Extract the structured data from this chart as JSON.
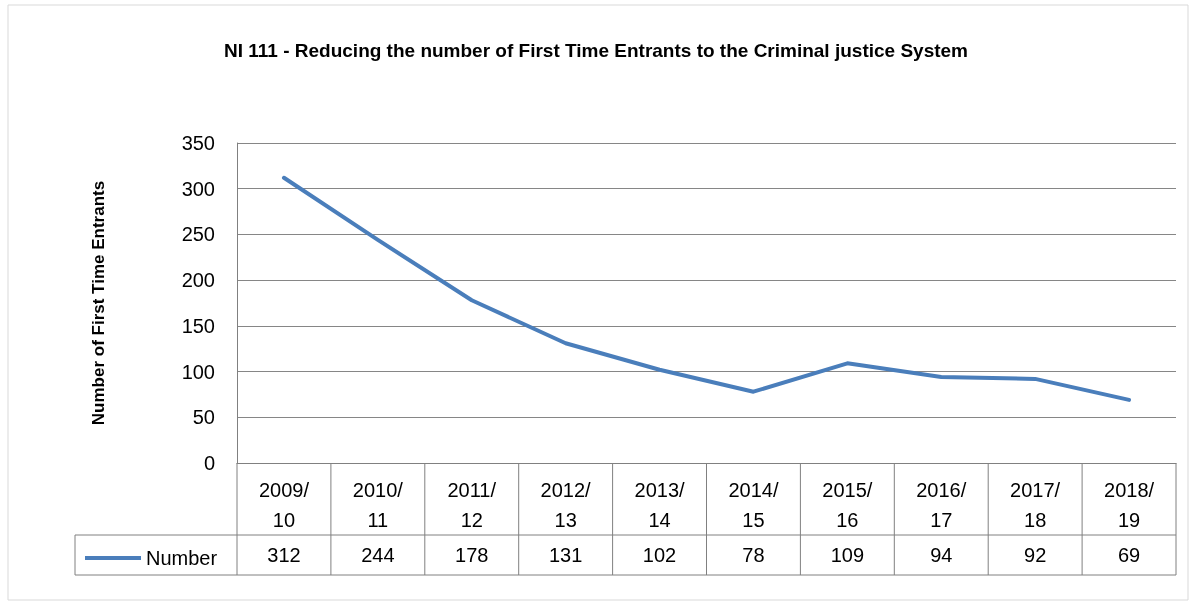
{
  "chart_data": {
    "type": "line",
    "title": "NI 111 - Reducing the number of First Time Entrants to the Criminal justice System",
    "ylabel": "Number of First Time Entrants",
    "categories": [
      "2009/10",
      "2010/11",
      "2011/12",
      "2012/13",
      "2013/14",
      "2014/15",
      "2015/16",
      "2016/17",
      "2017/18",
      "2018/19"
    ],
    "series": [
      {
        "name": "Number",
        "color": "#4a7ebb",
        "values": [
          312,
          244,
          178,
          131,
          102,
          78,
          109,
          94,
          92,
          69
        ]
      }
    ],
    "ylim": [
      0,
      350
    ],
    "yticks": [
      0,
      50,
      100,
      150,
      200,
      250,
      300,
      350
    ],
    "grid": "y",
    "legend": "bottom left",
    "data_labels": true,
    "marker": "none",
    "line_style": "solid"
  }
}
